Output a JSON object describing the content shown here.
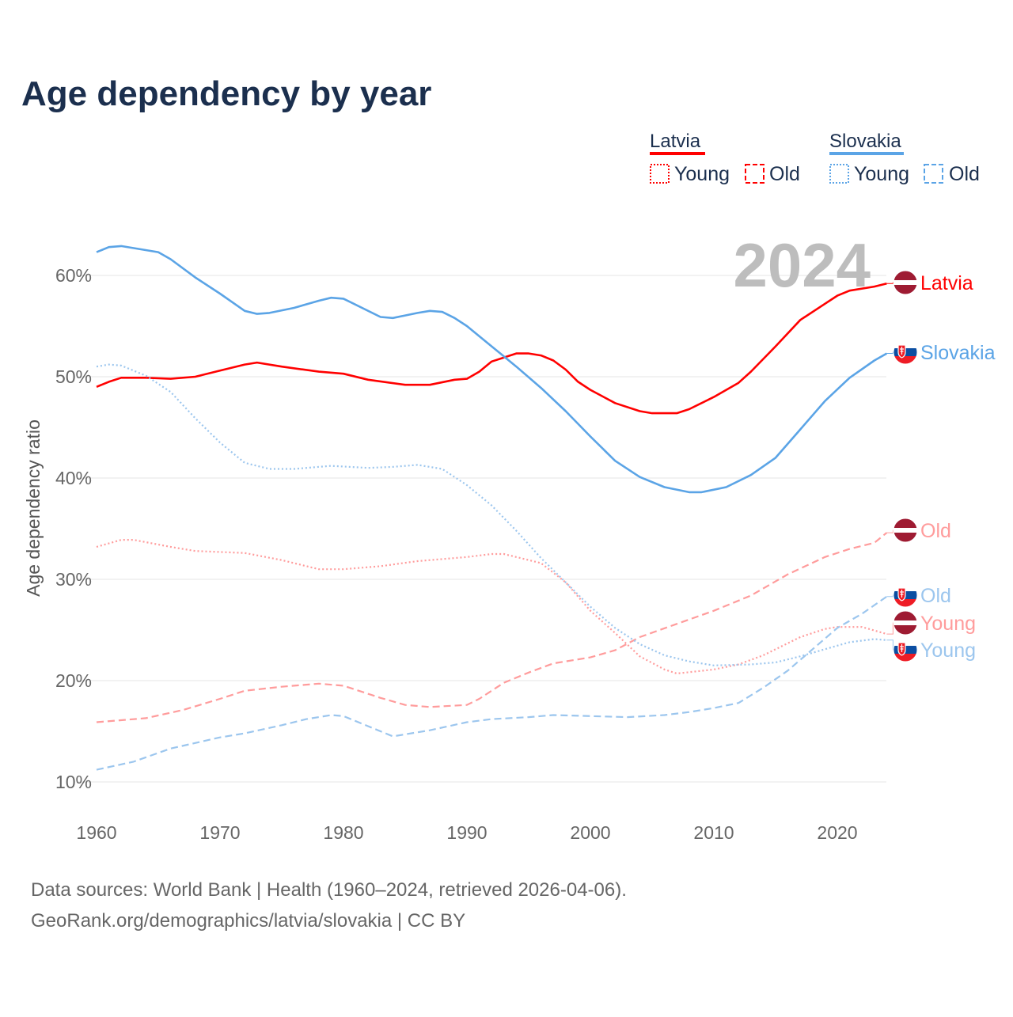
{
  "chart_data": {
    "type": "line",
    "title": "Age dependency by year",
    "xlabel": "",
    "ylabel": "Age dependency ratio",
    "xlim": [
      1960,
      2024
    ],
    "ylim": [
      10,
      63
    ],
    "grid": true,
    "x_ticks": [
      "1960",
      "1970",
      "1980",
      "1990",
      "2000",
      "2010",
      "2020"
    ],
    "x_tick_values": [
      1960,
      1970,
      1980,
      1990,
      2000,
      2010,
      2020
    ],
    "y_ticks": [
      "10%",
      "20%",
      "30%",
      "40%",
      "50%",
      "60%"
    ],
    "y_tick_values": [
      10,
      20,
      30,
      40,
      50,
      60
    ],
    "year_watermark": "2024",
    "legend": {
      "placement": "top-right",
      "groups": [
        {
          "country": "Latvia",
          "color": "#ff0000",
          "items": [
            {
              "label": "Young",
              "style": "dotted"
            },
            {
              "label": "Old",
              "style": "dashed"
            }
          ]
        },
        {
          "country": "Slovakia",
          "color": "#5ba4e6",
          "items": [
            {
              "label": "Young",
              "style": "dotted"
            },
            {
              "label": "Old",
              "style": "dashed"
            }
          ]
        }
      ]
    },
    "series": [
      {
        "name": "Latvia",
        "country": "Latvia",
        "style": "solid",
        "color": "#ff0000",
        "end_label": "Latvia",
        "points": [
          [
            1960,
            49.0
          ],
          [
            1961,
            49.5
          ],
          [
            1962,
            49.9
          ],
          [
            1964,
            49.9
          ],
          [
            1966,
            49.8
          ],
          [
            1968,
            50.0
          ],
          [
            1970,
            50.6
          ],
          [
            1972,
            51.2
          ],
          [
            1973,
            51.4
          ],
          [
            1975,
            51.0
          ],
          [
            1978,
            50.5
          ],
          [
            1980,
            50.3
          ],
          [
            1982,
            49.7
          ],
          [
            1985,
            49.2
          ],
          [
            1987,
            49.2
          ],
          [
            1989,
            49.7
          ],
          [
            1990,
            49.8
          ],
          [
            1991,
            50.5
          ],
          [
            1992,
            51.5
          ],
          [
            1994,
            52.3
          ],
          [
            1995,
            52.3
          ],
          [
            1996,
            52.1
          ],
          [
            1997,
            51.6
          ],
          [
            1998,
            50.7
          ],
          [
            1999,
            49.5
          ],
          [
            2000,
            48.7
          ],
          [
            2002,
            47.4
          ],
          [
            2004,
            46.6
          ],
          [
            2005,
            46.4
          ],
          [
            2007,
            46.4
          ],
          [
            2008,
            46.8
          ],
          [
            2010,
            48.0
          ],
          [
            2012,
            49.4
          ],
          [
            2013,
            50.5
          ],
          [
            2015,
            53.0
          ],
          [
            2017,
            55.6
          ],
          [
            2019,
            57.2
          ],
          [
            2020,
            58.0
          ],
          [
            2021,
            58.5
          ],
          [
            2023,
            58.9
          ],
          [
            2024,
            59.2
          ]
        ]
      },
      {
        "name": "Slovakia",
        "country": "Slovakia",
        "style": "solid",
        "color": "#5ba4e6",
        "end_label": "Slovakia",
        "points": [
          [
            1960,
            62.3
          ],
          [
            1961,
            62.8
          ],
          [
            1962,
            62.9
          ],
          [
            1965,
            62.3
          ],
          [
            1966,
            61.6
          ],
          [
            1968,
            59.8
          ],
          [
            1970,
            58.2
          ],
          [
            1972,
            56.5
          ],
          [
            1973,
            56.2
          ],
          [
            1974,
            56.3
          ],
          [
            1976,
            56.8
          ],
          [
            1978,
            57.5
          ],
          [
            1979,
            57.8
          ],
          [
            1980,
            57.7
          ],
          [
            1983,
            55.9
          ],
          [
            1984,
            55.8
          ],
          [
            1986,
            56.3
          ],
          [
            1987,
            56.5
          ],
          [
            1988,
            56.4
          ],
          [
            1989,
            55.8
          ],
          [
            1990,
            55.0
          ],
          [
            1992,
            53.0
          ],
          [
            1994,
            51.0
          ],
          [
            1996,
            48.9
          ],
          [
            1998,
            46.6
          ],
          [
            2000,
            44.1
          ],
          [
            2002,
            41.7
          ],
          [
            2004,
            40.1
          ],
          [
            2006,
            39.1
          ],
          [
            2008,
            38.6
          ],
          [
            2009,
            38.6
          ],
          [
            2011,
            39.1
          ],
          [
            2013,
            40.3
          ],
          [
            2015,
            42.0
          ],
          [
            2017,
            44.8
          ],
          [
            2019,
            47.6
          ],
          [
            2021,
            49.9
          ],
          [
            2023,
            51.6
          ],
          [
            2024,
            52.3
          ]
        ]
      },
      {
        "name": "Latvia Young",
        "country": "Latvia",
        "style": "dotted",
        "color": "#ff9c9c",
        "end_label": "Young",
        "points": [
          [
            1960,
            33.2
          ],
          [
            1962,
            33.9
          ],
          [
            1963,
            33.9
          ],
          [
            1966,
            33.2
          ],
          [
            1968,
            32.8
          ],
          [
            1972,
            32.6
          ],
          [
            1975,
            31.9
          ],
          [
            1978,
            31.0
          ],
          [
            1980,
            31.0
          ],
          [
            1983,
            31.3
          ],
          [
            1986,
            31.8
          ],
          [
            1990,
            32.2
          ],
          [
            1992,
            32.5
          ],
          [
            1993,
            32.5
          ],
          [
            1996,
            31.6
          ],
          [
            1998,
            29.7
          ],
          [
            2000,
            26.9
          ],
          [
            2002,
            24.7
          ],
          [
            2004,
            22.4
          ],
          [
            2006,
            21.1
          ],
          [
            2007,
            20.7
          ],
          [
            2010,
            21.1
          ],
          [
            2012,
            21.6
          ],
          [
            2014,
            22.5
          ],
          [
            2017,
            24.3
          ],
          [
            2019,
            25.1
          ],
          [
            2020,
            25.3
          ],
          [
            2022,
            25.3
          ],
          [
            2024,
            24.6
          ]
        ]
      },
      {
        "name": "Latvia Old",
        "country": "Latvia",
        "style": "dashed",
        "color": "#ff9c9c",
        "end_label": "Old",
        "points": [
          [
            1960,
            15.9
          ],
          [
            1964,
            16.3
          ],
          [
            1967,
            17.1
          ],
          [
            1970,
            18.2
          ],
          [
            1972,
            19.0
          ],
          [
            1975,
            19.4
          ],
          [
            1978,
            19.7
          ],
          [
            1980,
            19.5
          ],
          [
            1983,
            18.3
          ],
          [
            1985,
            17.6
          ],
          [
            1987,
            17.4
          ],
          [
            1990,
            17.6
          ],
          [
            1991,
            18.2
          ],
          [
            1993,
            19.8
          ],
          [
            1995,
            20.8
          ],
          [
            1997,
            21.7
          ],
          [
            2000,
            22.3
          ],
          [
            2002,
            23.0
          ],
          [
            2004,
            24.3
          ],
          [
            2007,
            25.6
          ],
          [
            2010,
            26.9
          ],
          [
            2013,
            28.4
          ],
          [
            2016,
            30.5
          ],
          [
            2019,
            32.2
          ],
          [
            2021,
            33.0
          ],
          [
            2023,
            33.6
          ],
          [
            2024,
            34.6
          ]
        ]
      },
      {
        "name": "Slovakia Young",
        "country": "Slovakia",
        "style": "dotted",
        "color": "#9cc6ee",
        "end_label": "Young",
        "points": [
          [
            1960,
            51.0
          ],
          [
            1961,
            51.2
          ],
          [
            1962,
            51.1
          ],
          [
            1964,
            50.1
          ],
          [
            1966,
            48.5
          ],
          [
            1968,
            45.9
          ],
          [
            1970,
            43.5
          ],
          [
            1972,
            41.5
          ],
          [
            1974,
            40.9
          ],
          [
            1976,
            40.9
          ],
          [
            1979,
            41.2
          ],
          [
            1982,
            41.0
          ],
          [
            1984,
            41.1
          ],
          [
            1986,
            41.3
          ],
          [
            1988,
            40.9
          ],
          [
            1990,
            39.3
          ],
          [
            1992,
            37.3
          ],
          [
            1994,
            34.8
          ],
          [
            1996,
            32.1
          ],
          [
            1998,
            29.7
          ],
          [
            2000,
            27.3
          ],
          [
            2002,
            25.2
          ],
          [
            2004,
            23.6
          ],
          [
            2006,
            22.5
          ],
          [
            2008,
            21.9
          ],
          [
            2010,
            21.5
          ],
          [
            2013,
            21.6
          ],
          [
            2015,
            21.8
          ],
          [
            2017,
            22.4
          ],
          [
            2019,
            23.1
          ],
          [
            2021,
            23.8
          ],
          [
            2023,
            24.1
          ],
          [
            2024,
            24.0
          ]
        ]
      },
      {
        "name": "Slovakia Old",
        "country": "Slovakia",
        "style": "dashed",
        "color": "#9cc6ee",
        "end_label": "Old",
        "points": [
          [
            1960,
            11.2
          ],
          [
            1963,
            12.0
          ],
          [
            1966,
            13.3
          ],
          [
            1970,
            14.4
          ],
          [
            1972,
            14.8
          ],
          [
            1975,
            15.6
          ],
          [
            1977,
            16.2
          ],
          [
            1979,
            16.6
          ],
          [
            1980,
            16.5
          ],
          [
            1982,
            15.5
          ],
          [
            1984,
            14.5
          ],
          [
            1987,
            15.1
          ],
          [
            1990,
            15.9
          ],
          [
            1992,
            16.2
          ],
          [
            1995,
            16.4
          ],
          [
            1997,
            16.6
          ],
          [
            2000,
            16.5
          ],
          [
            2003,
            16.4
          ],
          [
            2006,
            16.6
          ],
          [
            2008,
            16.9
          ],
          [
            2010,
            17.3
          ],
          [
            2012,
            17.8
          ],
          [
            2014,
            19.3
          ],
          [
            2016,
            21.0
          ],
          [
            2018,
            23.1
          ],
          [
            2020,
            25.2
          ],
          [
            2022,
            26.6
          ],
          [
            2024,
            28.3
          ]
        ]
      }
    ]
  },
  "footer": {
    "line1": "Data sources: World Bank | Health (1960–2024, retrieved 2026-04-06).",
    "line2": "GeoRank.org/demographics/latvia/slovakia | CC BY"
  }
}
